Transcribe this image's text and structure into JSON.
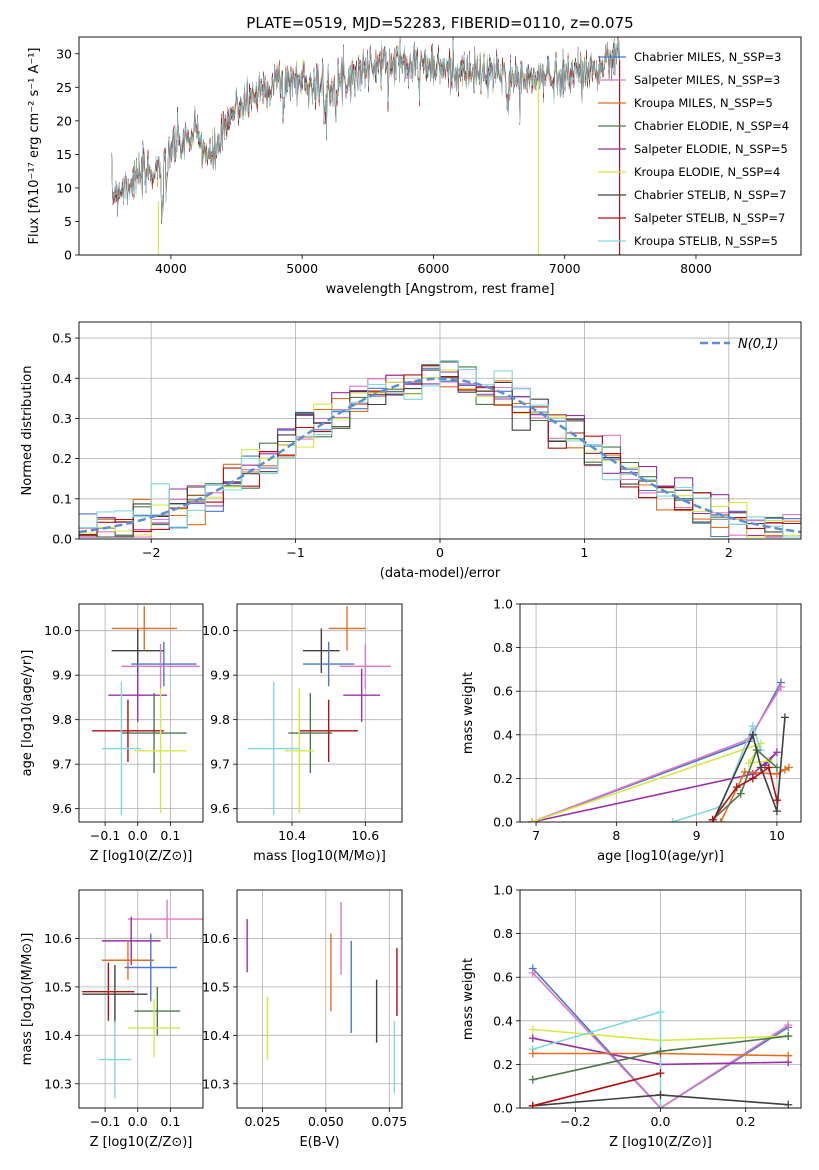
{
  "chart_data": [
    {
      "type": "line",
      "title": "PLATE=0519, MJD=52283, FIBERID=0110, z=0.075",
      "xlabel": "wavelength [Angstrom, rest frame]",
      "ylabel": "Flux [fλ10⁻¹⁷ erg cm⁻² s⁻¹ A⁻¹]",
      "xlim": [
        3300,
        8800
      ],
      "ylim": [
        0,
        32.5
      ],
      "xticks": [
        4000,
        5000,
        6000,
        7000,
        8000
      ],
      "yticks": [
        0,
        5,
        10,
        15,
        20,
        25,
        30
      ],
      "grid": false,
      "legend_position": "right",
      "legend": [
        {
          "label": "Chabrier MILES, N_SSP=3",
          "color": "#4878cf"
        },
        {
          "label": "Salpeter MILES, N_SSP=3",
          "color": "#e377c2"
        },
        {
          "label": "Kroupa MILES, N_SSP=5",
          "color": "#e07020"
        },
        {
          "label": "Chabrier ELODIE, N_SSP=4",
          "color": "#4a7a4a"
        },
        {
          "label": "Salpeter ELODIE, N_SSP=5",
          "color": "#9b30a8"
        },
        {
          "label": "Kroupa ELODIE, N_SSP=4",
          "color": "#d4e84a"
        },
        {
          "label": "Chabrier STELIB, N_SSP=7",
          "color": "#404040"
        },
        {
          "label": "Salpeter STELIB, N_SSP=7",
          "color": "#b01010"
        },
        {
          "label": "Kroupa STELIB, N_SSP=5",
          "color": "#80d8e0"
        }
      ],
      "spectrum_anchor_points": {
        "x": [
          3550,
          3700,
          3900,
          4000,
          4200,
          4300,
          4500,
          4800,
          5000,
          5200,
          5500,
          5800,
          6000,
          6300,
          6500,
          6700,
          7000,
          7300,
          7400
        ],
        "y": [
          9,
          11,
          13,
          16,
          18,
          14,
          22,
          26,
          26,
          25,
          28,
          29,
          28,
          27,
          27,
          26,
          27,
          28,
          30
        ]
      }
    },
    {
      "type": "step",
      "xlabel": "(data-model)/error",
      "ylabel": "Normed distribution",
      "xlim": [
        -2.5,
        2.5
      ],
      "ylim": [
        0,
        0.54
      ],
      "xticks": [
        -2,
        -1,
        0,
        1,
        2
      ],
      "yticks": [
        0.0,
        0.1,
        0.2,
        0.3,
        0.4,
        0.5
      ],
      "grid": true,
      "legend_position": "top-right",
      "legend": [
        {
          "label": "N(0,1)",
          "color": "#5b8fd4",
          "style": "dashed"
        }
      ],
      "bin_width": 0.125,
      "reference_curve": "gaussian N(0,1)"
    },
    {
      "type": "scatter",
      "xlabel": "Z [log10(Z/Z⊙)]",
      "ylabel": "age  [log10(age/yr)]",
      "xlim": [
        -0.18,
        0.2
      ],
      "ylim": [
        9.57,
        10.06
      ],
      "xticks": [
        -0.1,
        0.0,
        0.1
      ],
      "yticks": [
        9.6,
        9.7,
        9.8,
        9.9,
        10.0
      ],
      "grid": true,
      "points": [
        {
          "x": 0.0,
          "y": 9.955,
          "xerr": 0.08,
          "yerr": 0.05,
          "color": "#404040"
        },
        {
          "x": 0.02,
          "y": 10.005,
          "xerr": 0.1,
          "yerr": 0.05,
          "color": "#e07020"
        },
        {
          "x": 0.08,
          "y": 9.925,
          "xerr": 0.1,
          "yerr": 0.05,
          "color": "#4878cf"
        },
        {
          "x": 0.07,
          "y": 9.92,
          "xerr": 0.12,
          "yerr": 0.05,
          "color": "#e377c2"
        },
        {
          "x": 0.0,
          "y": 9.855,
          "xerr": 0.09,
          "yerr": 0.06,
          "color": "#9b30a8"
        },
        {
          "x": 0.05,
          "y": 9.77,
          "xerr": 0.1,
          "yerr": 0.09,
          "color": "#4a7a4a"
        },
        {
          "x": -0.03,
          "y": 9.775,
          "xerr": 0.11,
          "yerr": 0.07,
          "color": "#b01010"
        },
        {
          "x": 0.07,
          "y": 9.73,
          "xerr": 0.08,
          "yerr": 0.14,
          "color": "#d4e84a"
        },
        {
          "x": -0.05,
          "y": 9.735,
          "xerr": 0.06,
          "yerr": 0.15,
          "color": "#80d8e0"
        }
      ]
    },
    {
      "type": "scatter",
      "xlabel": "mass [log10(M/M⊙)]",
      "ylabel": "",
      "xlim": [
        10.25,
        10.7
      ],
      "ylim": [
        9.57,
        10.06
      ],
      "xticks": [
        10.4,
        10.6
      ],
      "yticks": [
        9.6,
        9.7,
        9.8,
        9.9,
        10.0
      ],
      "grid": true,
      "points": [
        {
          "x": 10.48,
          "y": 9.955,
          "xerr": 0.05,
          "yerr": 0.05,
          "color": "#404040"
        },
        {
          "x": 10.55,
          "y": 10.005,
          "xerr": 0.05,
          "yerr": 0.05,
          "color": "#e07020"
        },
        {
          "x": 10.5,
          "y": 9.925,
          "xerr": 0.07,
          "yerr": 0.05,
          "color": "#4878cf"
        },
        {
          "x": 10.6,
          "y": 9.92,
          "xerr": 0.07,
          "yerr": 0.05,
          "color": "#e377c2"
        },
        {
          "x": 10.59,
          "y": 9.855,
          "xerr": 0.05,
          "yerr": 0.06,
          "color": "#9b30a8"
        },
        {
          "x": 10.45,
          "y": 9.77,
          "xerr": 0.06,
          "yerr": 0.09,
          "color": "#4a7a4a"
        },
        {
          "x": 10.5,
          "y": 9.775,
          "xerr": 0.08,
          "yerr": 0.07,
          "color": "#b01010"
        },
        {
          "x": 10.42,
          "y": 9.73,
          "xerr": 0.04,
          "yerr": 0.14,
          "color": "#d4e84a"
        },
        {
          "x": 10.35,
          "y": 9.735,
          "xerr": 0.07,
          "yerr": 0.15,
          "color": "#80d8e0"
        }
      ]
    },
    {
      "type": "line",
      "xlabel": "age  [log10(age/yr)]",
      "ylabel": "mass weight",
      "xlim": [
        6.8,
        10.3
      ],
      "ylim": [
        0,
        1.0
      ],
      "xticks": [
        7,
        8,
        9,
        10
      ],
      "yticks": [
        0.0,
        0.2,
        0.4,
        0.6,
        0.8,
        1.0
      ],
      "grid": true,
      "series": [
        {
          "color": "#4878cf",
          "points": [
            [
              6.95,
              0.0
            ],
            [
              9.65,
              0.37
            ],
            [
              10.05,
              0.64
            ]
          ]
        },
        {
          "color": "#e377c2",
          "points": [
            [
              6.95,
              0.0
            ],
            [
              9.65,
              0.38
            ],
            [
              10.05,
              0.62
            ]
          ]
        },
        {
          "color": "#9b30a8",
          "points": [
            [
              6.95,
              0.0
            ],
            [
              9.7,
              0.22
            ],
            [
              10.0,
              0.32
            ],
            [
              9.85,
              0.26
            ]
          ]
        },
        {
          "color": "#d4e84a",
          "points": [
            [
              6.95,
              0.0
            ],
            [
              9.8,
              0.36
            ],
            [
              9.65,
              0.27
            ],
            [
              9.9,
              0.28
            ]
          ]
        },
        {
          "color": "#80d8e0",
          "points": [
            [
              8.7,
              0.0
            ],
            [
              9.3,
              0.07
            ],
            [
              9.7,
              0.44
            ],
            [
              9.8,
              0.33
            ]
          ]
        },
        {
          "color": "#e07020",
          "points": [
            [
              9.3,
              0.0
            ],
            [
              9.6,
              0.23
            ],
            [
              10.0,
              0.22
            ],
            [
              10.1,
              0.24
            ],
            [
              10.15,
              0.25
            ]
          ]
        },
        {
          "color": "#4a7a4a",
          "points": [
            [
              9.2,
              0.01
            ],
            [
              9.55,
              0.13
            ],
            [
              9.75,
              0.33
            ],
            [
              10.0,
              0.25
            ]
          ]
        },
        {
          "color": "#404040",
          "points": [
            [
              9.2,
              0.0
            ],
            [
              9.7,
              0.4
            ],
            [
              9.8,
              0.25
            ],
            [
              10.0,
              0.05
            ],
            [
              10.1,
              0.48
            ]
          ]
        },
        {
          "color": "#b01010",
          "points": [
            [
              9.2,
              0.01
            ],
            [
              9.5,
              0.16
            ],
            [
              9.7,
              0.2
            ],
            [
              9.9,
              0.25
            ],
            [
              10.0,
              0.1
            ]
          ]
        }
      ]
    },
    {
      "type": "scatter",
      "xlabel": "Z [log10(Z/Z⊙)]",
      "ylabel": "mass [log10(M/M⊙)]",
      "xlim": [
        -0.18,
        0.2
      ],
      "ylim": [
        10.25,
        10.7
      ],
      "xticks": [
        -0.1,
        0.0,
        0.1
      ],
      "yticks": [
        10.3,
        10.4,
        10.5,
        10.6
      ],
      "grid": true,
      "points": [
        {
          "x": 0.09,
          "y": 10.64,
          "xerr": 0.12,
          "yerr": 0.04,
          "color": "#e377c2"
        },
        {
          "x": -0.02,
          "y": 10.595,
          "xerr": 0.09,
          "yerr": 0.05,
          "color": "#9b30a8"
        },
        {
          "x": -0.03,
          "y": 10.555,
          "xerr": 0.08,
          "yerr": 0.04,
          "color": "#e07020"
        },
        {
          "x": 0.04,
          "y": 10.54,
          "xerr": 0.08,
          "yerr": 0.07,
          "color": "#4878cf"
        },
        {
          "x": -0.07,
          "y": 10.485,
          "xerr": 0.1,
          "yerr": 0.06,
          "color": "#404040"
        },
        {
          "x": -0.09,
          "y": 10.49,
          "xerr": 0.08,
          "yerr": 0.06,
          "color": "#b01010"
        },
        {
          "x": 0.06,
          "y": 10.45,
          "xerr": 0.07,
          "yerr": 0.05,
          "color": "#4a7a4a"
        },
        {
          "x": 0.05,
          "y": 10.415,
          "xerr": 0.08,
          "yerr": 0.06,
          "color": "#d4e84a"
        },
        {
          "x": -0.07,
          "y": 10.35,
          "xerr": 0.05,
          "yerr": 0.08,
          "color": "#80d8e0"
        }
      ]
    },
    {
      "type": "scatter",
      "xlabel": "E(B-V)",
      "ylabel": "",
      "xlim": [
        0.015,
        0.08
      ],
      "ylim": [
        10.25,
        10.7
      ],
      "xticks": [
        0.025,
        0.05,
        0.075
      ],
      "yticks": [
        10.3,
        10.4,
        10.5,
        10.6
      ],
      "grid": true,
      "points": [
        {
          "x": 0.019,
          "y": 10.585,
          "xerr": 0.0,
          "yerr": 0.055,
          "color": "#9b30a8"
        },
        {
          "x": 0.027,
          "y": 10.415,
          "xerr": 0.0,
          "yerr": 0.065,
          "color": "#d4e84a"
        },
        {
          "x": 0.052,
          "y": 10.53,
          "xerr": 0.0,
          "yerr": 0.08,
          "color": "#e07020"
        },
        {
          "x": 0.056,
          "y": 10.6,
          "xerr": 0.0,
          "yerr": 0.075,
          "color": "#e377c2"
        },
        {
          "x": 0.06,
          "y": 10.5,
          "xerr": 0.0,
          "yerr": 0.095,
          "color": "#4878cf"
        },
        {
          "x": 0.07,
          "y": 10.45,
          "xerr": 0.0,
          "yerr": 0.065,
          "color": "#404040"
        },
        {
          "x": 0.077,
          "y": 10.355,
          "xerr": 0.0,
          "yerr": 0.075,
          "color": "#80d8e0"
        },
        {
          "x": 0.078,
          "y": 10.51,
          "xerr": 0.0,
          "yerr": 0.07,
          "color": "#b01010"
        }
      ]
    },
    {
      "type": "line",
      "xlabel": "Z [log10(Z/Z⊙)]",
      "ylabel": "mass weight",
      "xlim": [
        -0.33,
        0.33
      ],
      "ylim": [
        0,
        1.0
      ],
      "xticks": [
        -0.2,
        0.0,
        0.2
      ],
      "yticks": [
        0.0,
        0.2,
        0.4,
        0.6,
        0.8,
        1.0
      ],
      "grid": true,
      "series": [
        {
          "color": "#4878cf",
          "points": [
            [
              -0.3,
              0.64
            ],
            [
              0.0,
              0.0
            ],
            [
              0.3,
              0.37
            ]
          ]
        },
        {
          "color": "#e377c2",
          "points": [
            [
              -0.3,
              0.62
            ],
            [
              0.0,
              0.0
            ],
            [
              0.3,
              0.38
            ]
          ]
        },
        {
          "color": "#9b30a8",
          "points": [
            [
              -0.3,
              0.32
            ],
            [
              0.0,
              0.2
            ],
            [
              0.3,
              0.21
            ]
          ]
        },
        {
          "color": "#d4e84a",
          "points": [
            [
              -0.3,
              0.36
            ],
            [
              0.0,
              0.31
            ],
            [
              0.3,
              0.33
            ]
          ]
        },
        {
          "color": "#80d8e0",
          "points": [
            [
              -0.3,
              0.27
            ],
            [
              0.0,
              0.44
            ],
            [
              0.0,
              0.0
            ]
          ]
        },
        {
          "color": "#e07020",
          "points": [
            [
              -0.3,
              0.25
            ],
            [
              0.0,
              0.25
            ],
            [
              0.3,
              0.24
            ]
          ]
        },
        {
          "color": "#4a7a4a",
          "points": [
            [
              -0.3,
              0.13
            ],
            [
              0.0,
              0.26
            ],
            [
              0.3,
              0.33
            ]
          ]
        },
        {
          "color": "#404040",
          "points": [
            [
              -0.3,
              0.01
            ],
            [
              0.0,
              0.06
            ],
            [
              0.3,
              0.015
            ]
          ]
        },
        {
          "color": "#b01010",
          "points": [
            [
              -0.3,
              0.01
            ],
            [
              0.0,
              0.16
            ]
          ]
        }
      ]
    }
  ]
}
